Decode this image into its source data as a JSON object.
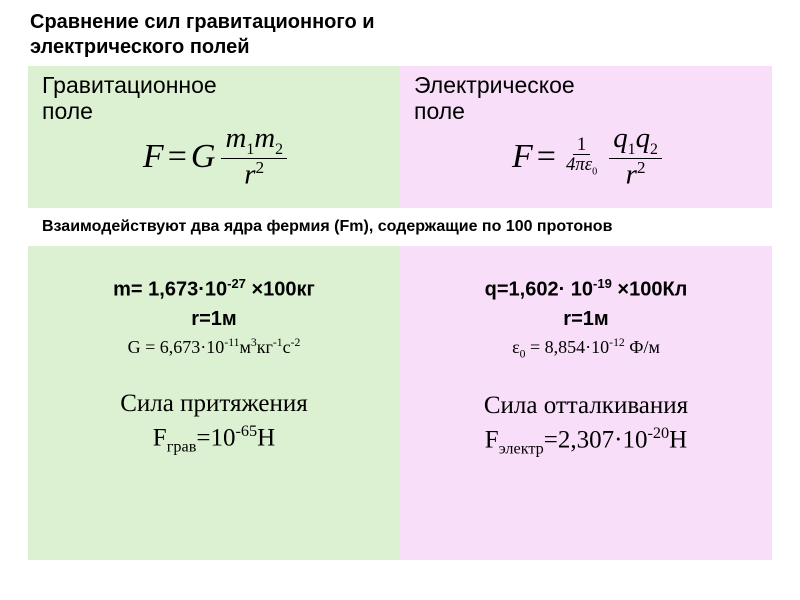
{
  "colors": {
    "left_bg": "#dcf0d2",
    "right_bg": "#f8def8",
    "note_bg": "#ffffff",
    "text": "#000000"
  },
  "title": {
    "line1": "Сравнение сил гравитационного и",
    "line2": "электрического полей"
  },
  "left": {
    "header1": "Гравитационное",
    "header2": "поле"
  },
  "right": {
    "header1": "Электрическое",
    "header2": "поле"
  },
  "note": "Взаимодействуют два ядра фермия (Fm), содержащие по 100 протонов",
  "left_params": {
    "mass_prefix": "m= 1,673·10",
    "mass_exp": "-27",
    "mass_suffix": " ×100кг",
    "r_line": "r=1м",
    "G_prefix": "G = 6,673·10",
    "G_exp": "-11",
    "G_units_html": "м<span class='sup'>3</span>кг<span class='sup'>-1</span>с<span class='sup'>-2</span>"
  },
  "right_params": {
    "q_prefix": "q=1,602· 10",
    "q_exp": "-19",
    "q_suffix": " ×100Кл",
    "r_line": "r=1м",
    "eps_prefix": "ε",
    "eps_sub": "0",
    "eps_mid": " = 8,854·10",
    "eps_exp": "-12",
    "eps_suffix": " Ф/м"
  },
  "left_result": {
    "label": "Сила притяжения",
    "F_prefix": "F",
    "F_sub": "грав",
    "F_eq": "=10",
    "F_exp": "-65",
    "F_unit": "Н"
  },
  "right_result": {
    "label": "Сила отталкивания",
    "F_prefix": "F",
    "F_sub": "электр",
    "F_eq": "=2,307·10",
    "F_exp": "-20",
    "F_unit": "Н"
  },
  "formula_left": {
    "F": "F",
    "eq": "=",
    "G": "G",
    "m1": "m",
    "s1": "1",
    "m2": "m",
    "s2": "2",
    "r": "r",
    "r_exp": "2"
  },
  "formula_right": {
    "F": "F",
    "eq": "=",
    "one": "1",
    "four": "4",
    "pi": "π",
    "eps": "ε",
    "eps_sub": "0",
    "q1": "q",
    "s1": "1",
    "q2": "q",
    "s2": "2",
    "r": "r",
    "r_exp": "2"
  }
}
